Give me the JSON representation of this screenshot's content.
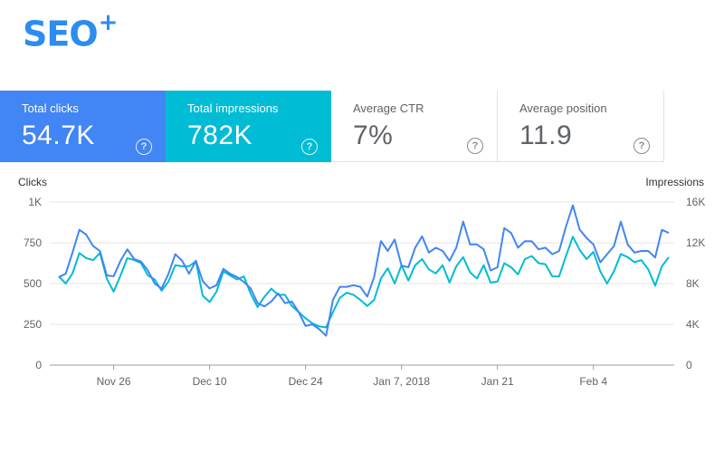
{
  "logo": {
    "text": "SEO",
    "plus": "+"
  },
  "cards": [
    {
      "label": "Total clicks",
      "value": "54.7K",
      "color": "#4285f4"
    },
    {
      "label": "Total impressions",
      "value": "782K",
      "color": "#00bcd4"
    },
    {
      "label": "Average CTR",
      "value": "7%"
    },
    {
      "label": "Average position",
      "value": "11.9"
    }
  ],
  "help_glyph": "?",
  "chart_data": {
    "type": "line",
    "left_axis_label": "Clicks",
    "right_axis_label": "Impressions",
    "left_ticks": [
      "0",
      "250",
      "500",
      "750",
      "1K"
    ],
    "right_ticks": [
      "0",
      "4K",
      "8K",
      "12K",
      "16K"
    ],
    "y_left_lim": [
      0,
      1000
    ],
    "y_right_lim": [
      0,
      16000
    ],
    "x_ticks": [
      "Nov 26",
      "Dec 10",
      "Dec 24",
      "Jan 7, 2018",
      "Jan 21",
      "Feb 4"
    ],
    "grid": true,
    "series": [
      {
        "name": "Clicks",
        "axis": "left",
        "color": "#4285f4",
        "values": [
          540,
          560,
          690,
          830,
          800,
          730,
          700,
          550,
          545,
          640,
          710,
          650,
          635,
          580,
          500,
          470,
          560,
          680,
          640,
          560,
          640,
          515,
          470,
          490,
          590,
          560,
          540,
          510,
          470,
          380,
          360,
          390,
          440,
          380,
          390,
          325,
          240,
          250,
          220,
          180,
          400,
          480,
          480,
          490,
          480,
          420,
          540,
          760,
          700,
          770,
          610,
          600,
          720,
          790,
          690,
          720,
          700,
          640,
          720,
          880,
          740,
          740,
          710,
          580,
          600,
          840,
          810,
          720,
          760,
          760,
          710,
          720,
          680,
          700,
          850,
          980,
          830,
          780,
          740,
          630,
          680,
          730,
          880,
          740,
          690,
          700,
          700,
          660,
          830,
          810
        ]
      },
      {
        "name": "Impressions",
        "axis": "right",
        "color": "#00bcd4",
        "values": [
          8700,
          8000,
          9000,
          11000,
          10500,
          10300,
          11000,
          8500,
          7200,
          8800,
          10500,
          10300,
          10000,
          8800,
          8400,
          7300,
          8200,
          9800,
          9700,
          9700,
          10200,
          6800,
          6200,
          7200,
          9200,
          8800,
          8400,
          8700,
          7000,
          5700,
          6700,
          7500,
          6900,
          6900,
          5800,
          5200,
          4600,
          4100,
          3800,
          3700,
          5200,
          6600,
          7100,
          6900,
          6400,
          5800,
          6400,
          8500,
          9500,
          8000,
          9800,
          8300,
          9800,
          10400,
          9400,
          9000,
          9800,
          8100,
          9700,
          10600,
          9100,
          8500,
          9800,
          8100,
          8200,
          10000,
          9600,
          8900,
          10400,
          10700,
          10000,
          9900,
          8700,
          8700,
          10700,
          12600,
          11300,
          10400,
          11100,
          9200,
          8000,
          9200,
          10900,
          10600,
          10100,
          10300,
          9400,
          7800,
          9700,
          10600
        ]
      }
    ]
  }
}
